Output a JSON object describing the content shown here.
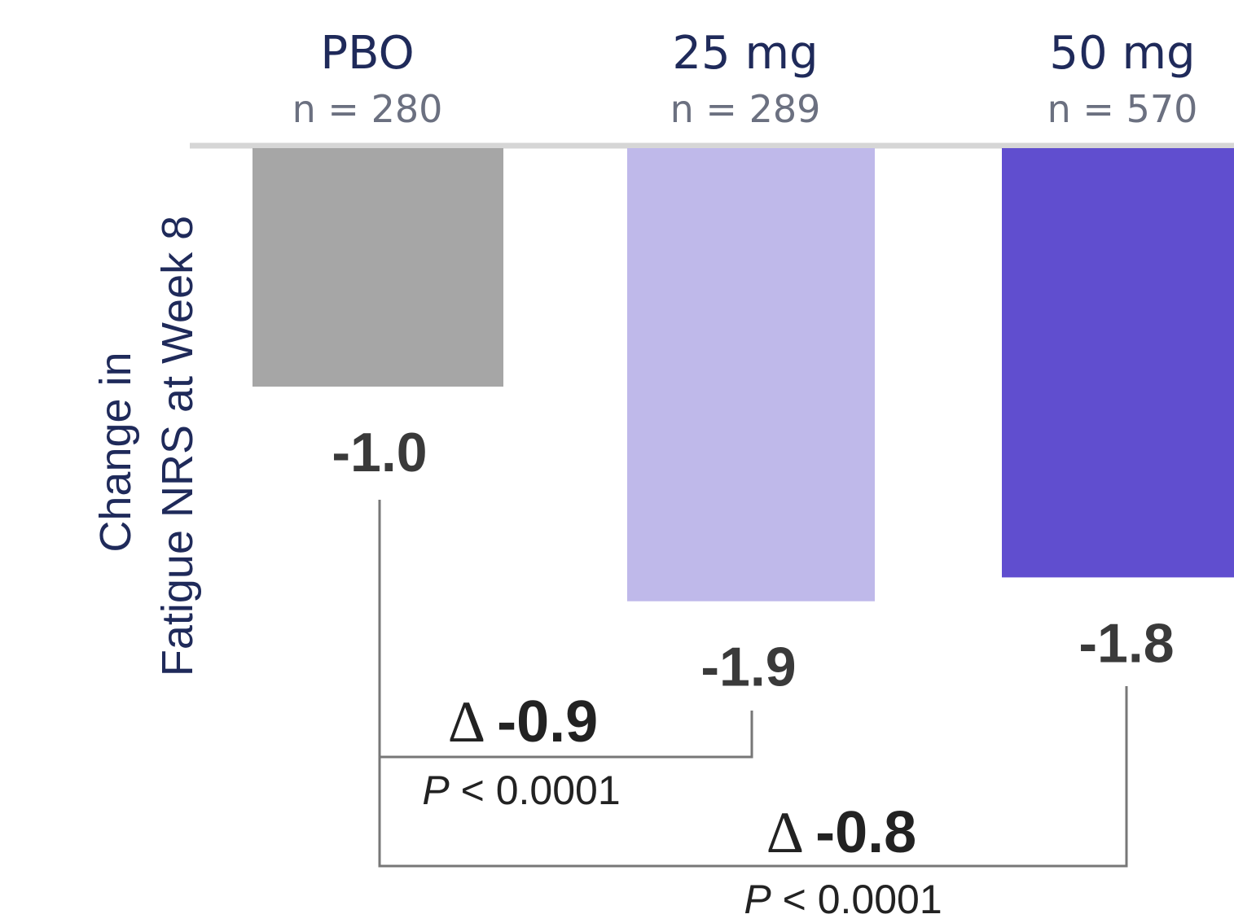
{
  "chart_data": {
    "type": "bar",
    "categories": [
      "PBO",
      "25 mg",
      "50 mg"
    ],
    "n_labels": [
      "n = 280",
      "n = 289",
      "n = 570"
    ],
    "values": [
      -1.0,
      -1.9,
      -1.8
    ],
    "value_labels": [
      "-1.0",
      "-1.9",
      "-1.8"
    ],
    "ylabel_lines": [
      "Change in",
      "Fatigue NRS at Week 8"
    ],
    "ylim": [
      -2.0,
      0
    ],
    "colors": [
      "#a6a6a6",
      "#bfb9ea",
      "#604ecf"
    ],
    "comparisons": [
      {
        "from": "PBO",
        "to": "25 mg",
        "delta_symbol": "Δ",
        "delta_value": "-0.9",
        "p_symbol": "P",
        "p_text": " < 0.0001"
      },
      {
        "from": "PBO",
        "to": "50 mg",
        "delta_symbol": "Δ",
        "delta_value": "-0.8",
        "p_symbol": "P",
        "p_text": " < 0.0001"
      }
    ]
  }
}
